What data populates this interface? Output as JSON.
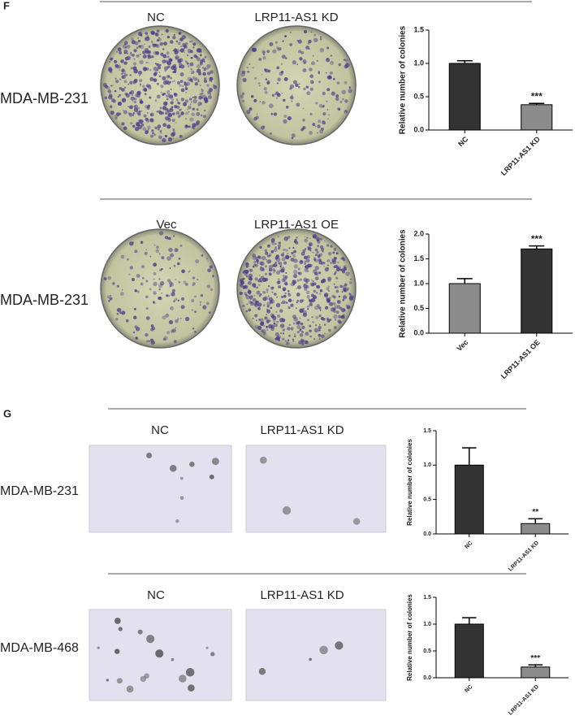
{
  "panels": [
    {
      "label": "F",
      "rows": [
        {
          "row_label": "MDA-MB-231",
          "image_labels": [
            "NC",
            "LRP11-AS1 KD"
          ]
        },
        {
          "row_label": "MDA-MB-231",
          "image_labels": [
            "Vec",
            "LRP11-AS1 OE"
          ]
        }
      ]
    },
    {
      "label": "G",
      "rows": [
        {
          "row_label": "MDA-MB-231",
          "image_labels": [
            "NC",
            "LRP11-AS1 KD"
          ]
        },
        {
          "row_label": "MDA-MB-468",
          "image_labels": [
            "NC",
            "LRP11-AS1 KD"
          ]
        }
      ]
    }
  ],
  "chart_data": [
    {
      "type": "bar",
      "ylabel": "Relative number of colonies",
      "categories": [
        "NC",
        "LRP11-AS1 KD"
      ],
      "values": [
        1.0,
        0.38
      ],
      "errors": [
        0.04,
        0.02
      ],
      "colors": [
        "#333333",
        "#8c8c8c"
      ],
      "significance": [
        null,
        "***"
      ],
      "ylim": [
        0,
        1.5
      ],
      "yticks": [
        {
          "value": 0,
          "label": "0.0"
        },
        {
          "value": 0.5,
          "label": "0.5"
        },
        {
          "value": 1,
          "label": "1.0"
        },
        {
          "value": 1.5,
          "label": "1.5"
        }
      ]
    },
    {
      "type": "bar",
      "ylabel": "Relative number of colonies",
      "categories": [
        "Vec",
        "LRP11-AS1 OE"
      ],
      "values": [
        1.0,
        1.7
      ],
      "errors": [
        0.1,
        0.06
      ],
      "colors": [
        "#8c8c8c",
        "#333333"
      ],
      "significance": [
        null,
        "***"
      ],
      "ylim": [
        0,
        2
      ],
      "yticks": [
        {
          "value": 0,
          "label": "0.0"
        },
        {
          "value": 0.5,
          "label": "0.5"
        },
        {
          "value": 1,
          "label": "1.0"
        },
        {
          "value": 1.5,
          "label": "1.5"
        },
        {
          "value": 2,
          "label": "2.0"
        }
      ]
    },
    {
      "type": "bar",
      "ylabel": "Relative number of colonies",
      "categories": [
        "NC",
        "LRP11-AS1 KD"
      ],
      "values": [
        1.0,
        0.15
      ],
      "errors": [
        0.25,
        0.07
      ],
      "colors": [
        "#333333",
        "#8c8c8c"
      ],
      "significance": [
        null,
        "**"
      ],
      "ylim": [
        0,
        1.5
      ],
      "yticks": [
        {
          "value": 0,
          "label": "0.0"
        },
        {
          "value": 0.5,
          "label": "0.5"
        },
        {
          "value": 1,
          "label": "1.0"
        },
        {
          "value": 1.5,
          "label": "1.5"
        }
      ]
    },
    {
      "type": "bar",
      "ylabel": "Relative number of colonies",
      "categories": [
        "NC",
        "LRP11-AS1 KD"
      ],
      "values": [
        1.0,
        0.2
      ],
      "errors": [
        0.12,
        0.04
      ],
      "colors": [
        "#333333",
        "#8c8c8c"
      ],
      "significance": [
        null,
        "***"
      ],
      "ylim": [
        0,
        1.5
      ],
      "yticks": [
        {
          "value": 0,
          "label": "0.0"
        },
        {
          "value": 0.5,
          "label": "0.5"
        },
        {
          "value": 1,
          "label": "1.0"
        },
        {
          "value": 1.5,
          "label": "1.5"
        }
      ]
    }
  ]
}
